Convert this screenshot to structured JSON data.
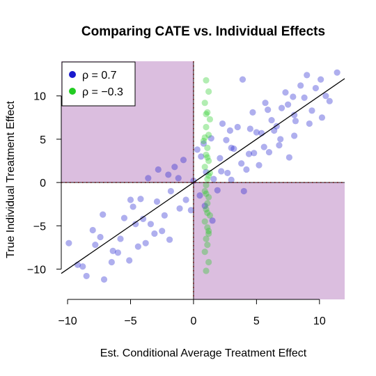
{
  "chart_data": {
    "type": "scatter",
    "title": "Comparing CATE vs. Individual Effects",
    "xlabel": "Est. Conditional Average Treatment Effect",
    "ylabel": "True Individual Treatment Effect",
    "xlim": [
      -10.5,
      12
    ],
    "ylim": [
      -13.5,
      14
    ],
    "x_ticks": [
      -10,
      -5,
      0,
      5,
      10
    ],
    "x_tick_labels": [
      "−10",
      "−5",
      "0",
      "5",
      "10"
    ],
    "y_ticks": [
      -10,
      -5,
      0,
      5,
      10
    ],
    "y_tick_labels": [
      "−10",
      "−5",
      "0",
      "5",
      "10"
    ],
    "grid": false,
    "legend": {
      "placement": "top-left",
      "entries": [
        {
          "label": "ρ = 0.7",
          "color": "#1a1acd"
        },
        {
          "label": "ρ = −0.3",
          "color": "#22cc22"
        }
      ]
    },
    "shaded_regions": [
      {
        "x": [
          -10.5,
          0
        ],
        "y": [
          0,
          14
        ],
        "color": "#dbbedf"
      },
      {
        "x": [
          0,
          12
        ],
        "y": [
          -13.5,
          0
        ],
        "color": "#dbbedf"
      }
    ],
    "reference_lines": [
      {
        "kind": "diagonal",
        "slope": 1,
        "intercept": 0,
        "color": "#000000"
      },
      {
        "kind": "vertical",
        "x": 0,
        "color": "#ff0000",
        "style": "dotted"
      },
      {
        "kind": "horizontal",
        "y": 0,
        "color": "#ff0000",
        "style": "dotted"
      }
    ],
    "series": [
      {
        "name": "ρ = 0.7",
        "color": "#1a1acd",
        "points_description": "correlated cloud along y = x",
        "x": [
          -9.9,
          -9.2,
          -8.5,
          -7.8,
          -7.1,
          -6.4,
          -5.8,
          -5.1,
          -4.6,
          -4.0,
          -3.4,
          -2.9,
          -2.3,
          -1.8,
          -1.2,
          -0.6,
          0.0,
          0.5,
          1.0,
          1.6,
          2.1,
          2.7,
          3.2,
          3.8,
          4.4,
          5.0,
          5.6,
          6.2,
          6.9,
          7.5,
          8.1,
          8.8,
          9.4,
          10.1,
          10.8,
          11.4,
          -8.0,
          -6.5,
          -4.8,
          -3.1,
          -1.5,
          0.3,
          1.9,
          3.5,
          5.2,
          6.8,
          8.5,
          10.2,
          -7.2,
          -5.5,
          -3.8,
          -2.0,
          -0.2,
          1.4,
          3.0,
          4.7,
          6.4,
          8.0,
          9.7,
          -6.0,
          -4.2,
          -2.5,
          -0.8,
          0.9,
          2.6,
          4.2,
          5.9,
          7.6,
          9.2,
          -2.8,
          -1.1,
          0.6,
          2.3,
          4.0,
          5.7,
          7.3,
          3.0,
          4.5,
          6.0,
          7.0,
          8.0,
          -5.0,
          -3.6,
          -1.9,
          2.2,
          1.5,
          0.8,
          4.8,
          6.6,
          -4.4,
          2.9,
          5.4,
          7.9,
          9.0,
          -7.4,
          -8.8,
          10.5,
          3.9
        ],
        "y": [
          -7.0,
          -9.5,
          -10.8,
          -7.2,
          -11.2,
          -7.9,
          -6.5,
          -9.0,
          -4.8,
          -4.2,
          -4.8,
          -2.2,
          -3.8,
          -1.0,
          0.5,
          -2.0,
          0.2,
          -1.5,
          1.2,
          0.4,
          2.8,
          1.1,
          3.9,
          2.2,
          3.3,
          5.8,
          4.1,
          7.2,
          5.0,
          9.0,
          7.1,
          9.8,
          8.3,
          11.9,
          9.4,
          12.7,
          -5.5,
          -9.2,
          -2.8,
          -5.9,
          1.8,
          3.8,
          -0.9,
          6.4,
          2.0,
          4.3,
          11.2,
          7.5,
          -3.7,
          -4.1,
          -7.0,
          0.9,
          -3.2,
          5.1,
          0.3,
          8.1,
          6.0,
          5.4,
          10.9,
          -8.1,
          -1.9,
          -5.6,
          2.6,
          -2.7,
          4.9,
          1.5,
          8.4,
          2.9,
          6.8,
          1.5,
          -3.0,
          3.0,
          6.8,
          -1.0,
          9.2,
          10.4,
          4.0,
          6.2,
          3.5,
          8.6,
          7.8,
          -2.0,
          0.5,
          -6.6,
          1.3,
          -4.4,
          4.5,
          3.4,
          6.5,
          -7.4,
          6.0,
          5.7,
          9.9,
          12.4,
          -6.3,
          -9.7,
          10.0,
          11.9
        ]
      },
      {
        "name": "ρ = −0.3",
        "color": "#22cc22",
        "points_description": "narrow vertical band near x = 1",
        "x": [
          1.0,
          1.2,
          0.9,
          1.1,
          1.3,
          1.0,
          1.2,
          0.8,
          1.1,
          1.0,
          1.2,
          0.9,
          1.3,
          1.1,
          1.0,
          0.9,
          1.2,
          1.1,
          1.0,
          1.3,
          0.9,
          1.1,
          1.2,
          1.0,
          1.1,
          0.9,
          1.2,
          1.0,
          1.1,
          1.2,
          1.0,
          1.1,
          0.9,
          1.2,
          1.0
        ],
        "y": [
          11.8,
          10.5,
          9.2,
          8.1,
          7.3,
          6.4,
          5.5,
          4.8,
          4.0,
          3.2,
          2.5,
          1.8,
          1.1,
          0.4,
          -0.3,
          -1.0,
          -1.7,
          -2.4,
          -3.1,
          -3.8,
          -4.5,
          -5.2,
          -5.9,
          -6.5,
          -7.2,
          -8.0,
          -9.2,
          -10.2,
          2.9,
          0.8,
          -1.3,
          -3.5,
          5.2,
          -5.6,
          7.9
        ]
      }
    ]
  }
}
